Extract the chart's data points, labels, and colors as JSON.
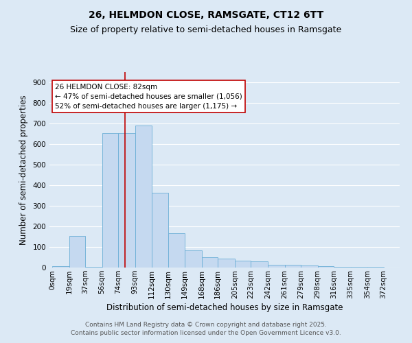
{
  "title_line1": "26, HELMDON CLOSE, RAMSGATE, CT12 6TT",
  "title_line2": "Size of property relative to semi-detached houses in Ramsgate",
  "xlabel": "Distribution of semi-detached houses by size in Ramsgate",
  "ylabel": "Number of semi-detached properties",
  "annotation_title": "26 HELMDON CLOSE: 82sqm",
  "annotation_line2": "← 47% of semi-detached houses are smaller (1,056)",
  "annotation_line3": "52% of semi-detached houses are larger (1,175) →",
  "footer_line1": "Contains HM Land Registry data © Crown copyright and database right 2025.",
  "footer_line2": "Contains public sector information licensed under the Open Government Licence v3.0.",
  "property_size_sqm": 82,
  "bar_left_edges": [
    0,
    19,
    37,
    56,
    74,
    93,
    112,
    130,
    149,
    168,
    186,
    205,
    223,
    242,
    261,
    279,
    298,
    316,
    335,
    354
  ],
  "bar_widths": [
    19,
    18,
    19,
    18,
    19,
    19,
    18,
    19,
    19,
    18,
    19,
    18,
    19,
    19,
    18,
    19,
    18,
    19,
    19,
    18
  ],
  "bar_heights": [
    8,
    155,
    2,
    655,
    655,
    690,
    362,
    168,
    85,
    50,
    42,
    35,
    30,
    14,
    13,
    10,
    6,
    3,
    2,
    5
  ],
  "tick_labels": [
    "0sqm",
    "19sqm",
    "37sqm",
    "56sqm",
    "74sqm",
    "93sqm",
    "112sqm",
    "130sqm",
    "149sqm",
    "168sqm",
    "186sqm",
    "205sqm",
    "223sqm",
    "242sqm",
    "261sqm",
    "279sqm",
    "298sqm",
    "316sqm",
    "335sqm",
    "354sqm",
    "372sqm"
  ],
  "tick_positions": [
    0,
    19,
    37,
    56,
    74,
    93,
    112,
    130,
    149,
    168,
    186,
    205,
    223,
    242,
    261,
    279,
    298,
    316,
    335,
    354,
    372
  ],
  "bar_color": "#c5d9f0",
  "bar_edge_color": "#6baed6",
  "vline_color": "#c00000",
  "vline_x": 82,
  "ylim": [
    0,
    950
  ],
  "xlim": [
    -3,
    390
  ],
  "yticks": [
    0,
    100,
    200,
    300,
    400,
    500,
    600,
    700,
    800,
    900
  ],
  "background_color": "#dce9f5",
  "plot_bg_color": "#dce9f5",
  "grid_color": "#ffffff",
  "annotation_box_color": "#ffffff",
  "annotation_border_color": "#c00000",
  "title_fontsize": 10,
  "subtitle_fontsize": 9,
  "axis_label_fontsize": 8.5,
  "tick_fontsize": 7.5,
  "annotation_fontsize": 7.5,
  "footer_fontsize": 6.5
}
